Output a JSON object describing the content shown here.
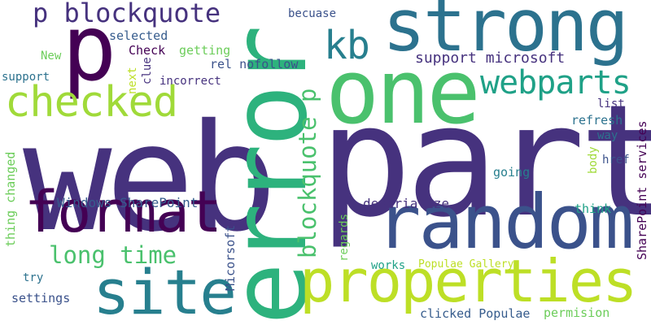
{
  "colors": {
    "c0": "#440154",
    "c1": "#46327e",
    "c2": "#365c8d",
    "c3": "#277f8e",
    "c4": "#1fa187",
    "c5": "#4ac16d",
    "c6": "#a0da39",
    "c7": "#bddf26",
    "c8": "#3b528b",
    "c9": "#2c728e",
    "c10": "#2db27d",
    "c11": "#6ccd5a"
  },
  "words": [
    {
      "id": "web",
      "text": "web",
      "color": "#46327e",
      "vertical": false
    },
    {
      "id": "part",
      "text": "part",
      "color": "#46327e",
      "vertical": false
    },
    {
      "id": "error",
      "text": "error",
      "color": "#2db27d",
      "vertical": true
    },
    {
      "id": "one",
      "text": "one",
      "color": "#4ac16d",
      "vertical": false
    },
    {
      "id": "strong",
      "text": "strong",
      "color": "#2c728e",
      "vertical": false
    },
    {
      "id": "random",
      "text": "random",
      "color": "#3b528b",
      "vertical": false
    },
    {
      "id": "properties",
      "text": "properties",
      "color": "#bddf26",
      "vertical": false
    },
    {
      "id": "format",
      "text": "format",
      "color": "#440154",
      "vertical": false
    },
    {
      "id": "site",
      "text": "site",
      "color": "#277f8e",
      "vertical": false
    },
    {
      "id": "p",
      "text": "p",
      "color": "#440154",
      "vertical": false
    },
    {
      "id": "checked",
      "text": "checked",
      "color": "#a0da39",
      "vertical": false
    },
    {
      "id": "webparts",
      "text": "webparts",
      "color": "#1fa187",
      "vertical": false
    },
    {
      "id": "kb",
      "text": "kb",
      "color": "#277f8e",
      "vertical": false
    },
    {
      "id": "p-blockquote",
      "text": "p blockquote",
      "color": "#46327e",
      "vertical": false
    },
    {
      "id": "blockquote-p",
      "text": "blockquote p",
      "color": "#4ac16d",
      "vertical": true
    },
    {
      "id": "long-time",
      "text": "long time",
      "color": "#4ac16d",
      "vertical": false
    },
    {
      "id": "support-microsoft",
      "text": "support microsoft",
      "color": "#46327e",
      "vertical": false
    },
    {
      "id": "windows-sharepoint",
      "text": "Windows SharePoint",
      "color": "#365c8d",
      "vertical": false
    },
    {
      "id": "deserialize",
      "text": "deserialize",
      "color": "#46327e",
      "vertical": false
    },
    {
      "id": "sharepoint-services",
      "text": "SharePoint services",
      "color": "#440154",
      "vertical": true
    },
    {
      "id": "micorsoft",
      "text": "Micorsoft",
      "color": "#3b528b",
      "vertical": true
    },
    {
      "id": "populae-gallery",
      "text": "Populae Gallery",
      "color": "#bddf26",
      "vertical": false
    },
    {
      "id": "clicked-populae",
      "text": "clicked Populae",
      "color": "#365c8d",
      "vertical": false
    },
    {
      "id": "permision",
      "text": "permision",
      "color": "#6ccd5a",
      "vertical": false
    },
    {
      "id": "thing-changed",
      "text": "thing changed",
      "color": "#6ccd5a",
      "vertical": true
    },
    {
      "id": "rel-nofollow",
      "text": "rel nofollow",
      "color": "#3b528b",
      "vertical": false
    },
    {
      "id": "getting",
      "text": "getting",
      "color": "#6ccd5a",
      "vertical": false
    },
    {
      "id": "check",
      "text": "Check",
      "color": "#440154",
      "vertical": false
    },
    {
      "id": "selected",
      "text": "selected",
      "color": "#365c8d",
      "vertical": false
    },
    {
      "id": "becuase",
      "text": "becuase",
      "color": "#3b528b",
      "vertical": false
    },
    {
      "id": "new",
      "text": "New",
      "color": "#6ccd5a",
      "vertical": false
    },
    {
      "id": "support",
      "text": "support",
      "color": "#2c728e",
      "vertical": false
    },
    {
      "id": "incorrect",
      "text": "incorrect",
      "color": "#46327e",
      "vertical": false
    },
    {
      "id": "next",
      "text": "next",
      "color": "#bddf26",
      "vertical": true
    },
    {
      "id": "clue",
      "text": "clue",
      "color": "#46327e",
      "vertical": true
    },
    {
      "id": "list",
      "text": "list",
      "color": "#46327e",
      "vertical": false
    },
    {
      "id": "refresh",
      "text": "refresh",
      "color": "#2c728e",
      "vertical": false
    },
    {
      "id": "way",
      "text": "way",
      "color": "#2c728e",
      "vertical": false
    },
    {
      "id": "body",
      "text": "body",
      "color": "#a0da39",
      "vertical": true
    },
    {
      "id": "href",
      "text": "href",
      "color": "#3b528b",
      "vertical": false
    },
    {
      "id": "going",
      "text": "going",
      "color": "#277f8e",
      "vertical": false
    },
    {
      "id": "think",
      "text": "think",
      "color": "#1fa187",
      "vertical": false
    },
    {
      "id": "regards",
      "text": "regards",
      "color": "#6ccd5a",
      "vertical": true
    },
    {
      "id": "works",
      "text": "works",
      "color": "#1fa187",
      "vertical": false
    },
    {
      "id": "try",
      "text": "try",
      "color": "#2c728e",
      "vertical": false
    },
    {
      "id": "settings",
      "text": "settings",
      "color": "#3b528b",
      "vertical": false
    }
  ]
}
